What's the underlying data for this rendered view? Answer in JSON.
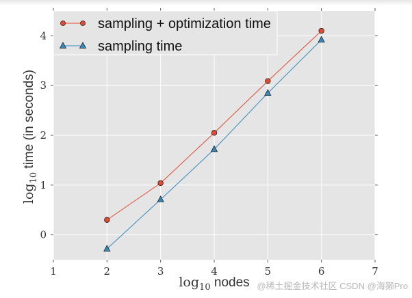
{
  "chart_data": {
    "type": "line",
    "x": [
      2,
      3,
      4,
      5,
      6
    ],
    "series": [
      {
        "name": "sampling + optimization time",
        "values": [
          0.3,
          1.04,
          2.05,
          3.09,
          4.1
        ],
        "color": "#e24a33",
        "marker": "circle"
      },
      {
        "name": "sampling time",
        "values": [
          -0.28,
          0.71,
          1.72,
          2.85,
          3.92
        ],
        "color": "#348abd",
        "marker": "triangle"
      }
    ],
    "xlabel_prefix": "log",
    "xlabel_sub": "10",
    "xlabel_rest": " nodes",
    "ylabel_prefix": "log",
    "ylabel_sub": "10",
    "ylabel_rest": " time (in seconds)",
    "xlim": [
      1,
      7
    ],
    "ylim": [
      -0.5,
      4.5
    ],
    "xticks": [
      1,
      2,
      3,
      4,
      5,
      6,
      7
    ],
    "yticks": [
      0,
      1,
      2,
      3,
      4
    ],
    "grid": true,
    "legend": "top-left",
    "background": "#e5e5e5"
  },
  "watermark": "@稀土掘金技术社区 CSDN @海獭Pro"
}
